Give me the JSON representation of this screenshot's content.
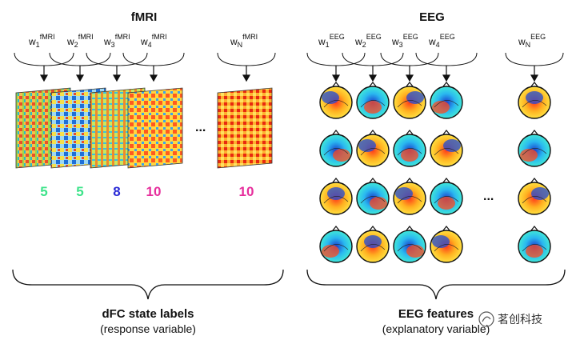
{
  "fmri": {
    "title": "fMRI",
    "weights": [
      {
        "base": "w",
        "sub": "1",
        "sup": "fMRI"
      },
      {
        "base": "w",
        "sub": "2",
        "sup": "fMRI"
      },
      {
        "base": "w",
        "sub": "3",
        "sup": "fMRI"
      },
      {
        "base": "w",
        "sub": "4",
        "sup": "fMRI"
      },
      {
        "base": "w",
        "sub": "N",
        "sup": "fMRI"
      }
    ],
    "ellipsis": "...",
    "state_labels": [
      {
        "text": "5",
        "color": "#3de38a"
      },
      {
        "text": "5",
        "color": "#3de38a"
      },
      {
        "text": "8",
        "color": "#2b2bd6"
      },
      {
        "text": "10",
        "color": "#e62e9c"
      },
      {
        "text": "10",
        "color": "#e62e9c"
      }
    ],
    "caption": "dFC state labels",
    "subcaption": "(response variable)"
  },
  "eeg": {
    "title": "EEG",
    "weights": [
      {
        "base": "w",
        "sub": "1",
        "sup": "EEG"
      },
      {
        "base": "w",
        "sub": "2",
        "sup": "EEG"
      },
      {
        "base": "w",
        "sub": "3",
        "sup": "EEG"
      },
      {
        "base": "w",
        "sub": "4",
        "sup": "EEG"
      },
      {
        "base": "w",
        "sub": "N",
        "sup": "EEG"
      }
    ],
    "ellipsis": "...",
    "caption": "EEG features",
    "subcaption": "(explanatory variable)"
  },
  "watermark": "茗创科技"
}
